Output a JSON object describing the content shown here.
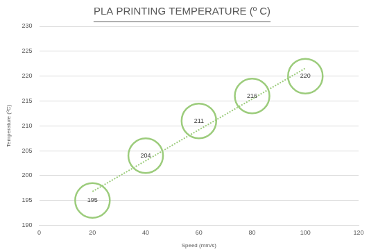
{
  "chart_data": {
    "type": "scatter",
    "title": "PLA PRINTING TEMPERATURE (º C)",
    "x_label": "Speed (mm/s)",
    "y_label": "Temperature (ºC)",
    "x": [
      20,
      40,
      60,
      80,
      100
    ],
    "values": [
      195,
      204,
      211,
      216,
      220
    ],
    "color": "#9ccc7c",
    "marker": "circle",
    "data_labels": true,
    "trendline": {
      "x": [
        20,
        100
      ],
      "values": [
        196.8,
        221.6
      ],
      "line_style": "dotted"
    },
    "xlim": [
      0,
      120
    ],
    "xticks": [
      0,
      20,
      40,
      60,
      80,
      100,
      120
    ],
    "ylim": [
      190,
      230
    ],
    "yticks": [
      190,
      195,
      200,
      205,
      210,
      215,
      220,
      225,
      230
    ],
    "grid": "y"
  }
}
